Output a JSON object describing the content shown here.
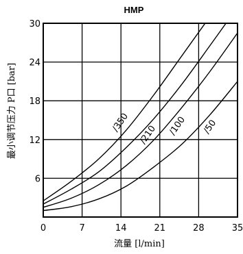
{
  "chart_data": {
    "type": "line",
    "title": "HMP",
    "xlabel": "流量 [l/min]",
    "ylabel": "最小调节压力 P口 [bar]",
    "xlim": [
      0,
      35
    ],
    "ylim": [
      0,
      30
    ],
    "xticks": [
      0,
      7,
      14,
      21,
      28,
      35
    ],
    "yticks": [
      6,
      12,
      18,
      24,
      30
    ],
    "grid": true,
    "series": [
      {
        "name": "/350",
        "x": [
          0,
          5,
          10,
          15,
          20,
          25,
          30
        ],
        "y": [
          2.5,
          5.5,
          9,
          13.5,
          19,
          25,
          31
        ]
      },
      {
        "name": "/210",
        "x": [
          0,
          5,
          10,
          15,
          20,
          25,
          30,
          35
        ],
        "y": [
          2.0,
          4.3,
          7.0,
          10.8,
          15.3,
          20.6,
          26.5,
          32.5
        ]
      },
      {
        "name": "/100",
        "x": [
          0,
          5,
          10,
          15,
          20,
          25,
          30,
          35
        ],
        "y": [
          1.5,
          2.9,
          5.0,
          8.0,
          12.0,
          17.0,
          22.5,
          28.5
        ]
      },
      {
        "name": "/50",
        "x": [
          0,
          5,
          10,
          15,
          20,
          25,
          30,
          35
        ],
        "y": [
          1.0,
          1.6,
          2.8,
          4.8,
          7.8,
          11.3,
          15.8,
          21.0
        ]
      }
    ]
  }
}
